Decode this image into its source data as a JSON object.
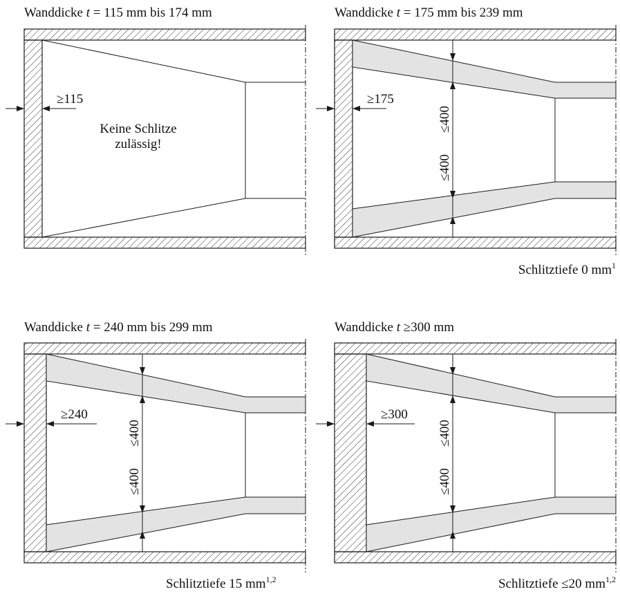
{
  "panels": [
    {
      "title_prefix": "Wanddicke ",
      "title_var": "t",
      "title_rest": " = 115 mm bis 174 mm",
      "min_label": "≥115",
      "note_line1": "Keine Schlitze",
      "note_line2": "zulässig!",
      "caption": "",
      "caption_sup": ""
    },
    {
      "title_prefix": "Wanddicke ",
      "title_var": "t",
      "title_rest": " = 175 mm bis 239 mm",
      "min_label": "≥175",
      "dim_top": "≤400",
      "dim_bottom": "≤400",
      "caption": "Schlitztiefe 0 mm",
      "caption_sup": "1"
    },
    {
      "title_prefix": "Wanddicke ",
      "title_var": "t",
      "title_rest": " = 240 mm bis 299 mm",
      "min_label": "≥240",
      "dim_top": "≤400",
      "dim_bottom": "≤400",
      "caption": "Schlitztiefe 15 mm",
      "caption_sup": "1,2"
    },
    {
      "title_prefix": "Wanddicke ",
      "title_var": "t",
      "title_rest": " ≥300 mm",
      "min_label": "≥300",
      "dim_top": "≤400",
      "dim_bottom": "≤400",
      "caption": "Schlitztiefe ≤20 mm",
      "caption_sup": "1,2"
    }
  ],
  "colors": {
    "line": "#1a1a1a",
    "slot_fill": "#e3e3e3",
    "hatch": "#333333"
  }
}
